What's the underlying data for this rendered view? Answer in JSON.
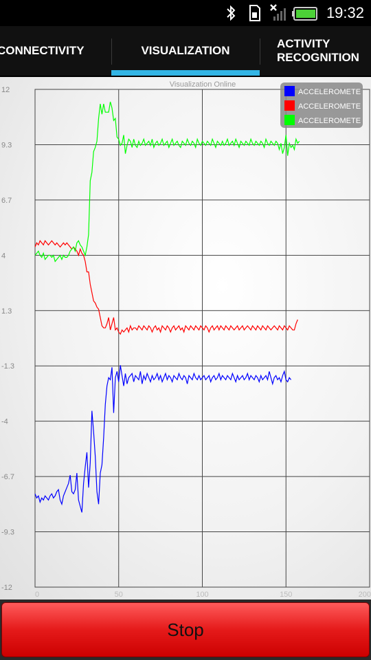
{
  "status_bar": {
    "time": "19:32"
  },
  "tabs": [
    {
      "label": "CONNECTIVITY",
      "active": false
    },
    {
      "label": "VISUALIZATION",
      "active": true
    },
    {
      "label": "ACTIVITY RECOGNITION",
      "active": false
    }
  ],
  "colors": {
    "tab_indicator": "#33b5e5",
    "stop_button": "#e51a1a"
  },
  "chart_data": {
    "type": "line",
    "title": "Visualization Online",
    "xlabel": "",
    "ylabel": "",
    "xlim": [
      0,
      200
    ],
    "ylim": [
      -12,
      12
    ],
    "x_ticks": [
      "0",
      "50",
      "100",
      "150",
      "200"
    ],
    "y_ticks": [
      "12",
      "9.3",
      "6.7",
      "4",
      "1.3",
      "-1.3",
      "-4",
      "-6.7",
      "-9.3",
      "-12"
    ],
    "grid": true,
    "legend_position": "top-right",
    "series": [
      {
        "name": "ACCELEROMETER_",
        "color": "#0000ff",
        "values": [
          -7.5,
          -7.7,
          -7.6,
          -7.9,
          -7.7,
          -7.8,
          -7.6,
          -7.7,
          -7.8,
          -7.6,
          -7.5,
          -7.7,
          -7.6,
          -7.4,
          -7.3,
          -7.8,
          -8.0,
          -7.6,
          -7.4,
          -7.2,
          -7.0,
          -6.6,
          -7.4,
          -7.5,
          -7.3,
          -6.5,
          -7.8,
          -8.1,
          -8.4,
          -7.0,
          -6.2,
          -5.5,
          -7.2,
          -6.0,
          -3.5,
          -4.5,
          -5.7,
          -7.4,
          -8.0,
          -6.5,
          -6.1,
          -4.8,
          -3.2,
          -2.3,
          -1.9,
          -2.0,
          -1.4,
          -3.6,
          -1.9,
          -1.6,
          -2.1,
          -1.3,
          -1.8,
          -2.3,
          -1.7,
          -2.2,
          -1.9,
          -1.8,
          -1.7,
          -2.1,
          -1.8,
          -1.9,
          -2.0,
          -1.6,
          -2.2,
          -1.8,
          -2.0,
          -1.7,
          -1.9,
          -2.1,
          -1.8,
          -2.0,
          -1.9,
          -1.7,
          -2.0,
          -1.8,
          -2.1,
          -1.9,
          -1.7,
          -2.0,
          -1.8,
          -1.9,
          -2.1,
          -1.8,
          -1.9,
          -2.0,
          -1.7,
          -1.9,
          -2.0,
          -1.8,
          -1.9,
          -2.2,
          -1.8,
          -1.9,
          -2.0,
          -1.7,
          -1.9,
          -2.0,
          -1.8,
          -2.0,
          -1.9,
          -1.8,
          -2.0,
          -1.9,
          -1.8,
          -2.1,
          -1.9,
          -1.8,
          -2.0,
          -1.9,
          -1.7,
          -2.0,
          -1.8,
          -1.9,
          -2.0,
          -1.8,
          -1.9,
          -2.0,
          -1.7,
          -1.9,
          -2.1,
          -1.8,
          -2.0,
          -1.9,
          -1.8,
          -2.0,
          -1.9,
          -1.7,
          -2.0,
          -1.8,
          -1.9,
          -2.0,
          -1.8,
          -1.9,
          -2.1,
          -1.8,
          -2.0,
          -1.9,
          -1.8,
          -2.0,
          -1.6,
          -1.9,
          -2.2,
          -1.9,
          -1.8,
          -2.0,
          -1.9,
          -2.1,
          -1.8,
          -1.6,
          -2.0,
          -2.1,
          -1.9,
          -2.0
        ]
      },
      {
        "name": "ACCELEROMETER_",
        "color": "#ff0000",
        "values": [
          4.4,
          4.6,
          4.5,
          4.7,
          4.6,
          4.5,
          4.7,
          4.6,
          4.5,
          4.6,
          4.7,
          4.6,
          4.5,
          4.6,
          4.5,
          4.4,
          4.5,
          4.6,
          4.5,
          4.6,
          4.5,
          4.4,
          4.3,
          4.4,
          4.3,
          4.2,
          4.0,
          4.3,
          4.1,
          4.0,
          3.7,
          3.2,
          3.2,
          2.6,
          2.2,
          1.8,
          1.7,
          1.5,
          1.4,
          1.0,
          0.6,
          0.5,
          0.5,
          0.7,
          1.0,
          0.4,
          0.7,
          1.0,
          0.4,
          0.5,
          0.3,
          0.2,
          0.4,
          0.3,
          0.4,
          0.5,
          0.3,
          0.6,
          0.4,
          0.5,
          0.5,
          0.4,
          0.6,
          0.5,
          0.4,
          0.6,
          0.5,
          0.4,
          0.6,
          0.5,
          0.3,
          0.5,
          0.6,
          0.4,
          0.5,
          0.3,
          0.6,
          0.5,
          0.4,
          0.6,
          0.5,
          0.3,
          0.5,
          0.6,
          0.4,
          0.5,
          0.6,
          0.4,
          0.5,
          0.3,
          0.6,
          0.5,
          0.4,
          0.6,
          0.5,
          0.4,
          0.6,
          0.5,
          0.4,
          0.6,
          0.5,
          0.4,
          0.6,
          0.5,
          0.3,
          0.5,
          0.6,
          0.4,
          0.5,
          0.6,
          0.4,
          0.6,
          0.5,
          0.4,
          0.6,
          0.5,
          0.4,
          0.6,
          0.5,
          0.4,
          0.5,
          0.6,
          0.4,
          0.5,
          0.6,
          0.4,
          0.5,
          0.6,
          0.5,
          0.4,
          0.6,
          0.5,
          0.4,
          0.6,
          0.5,
          0.4,
          0.6,
          0.5,
          0.4,
          0.6,
          0.5,
          0.4,
          0.5,
          0.6,
          0.5,
          0.4,
          0.6,
          0.5,
          0.4,
          0.6,
          0.5,
          0.4,
          0.6,
          0.5,
          0.4,
          0.4,
          0.7,
          0.9
        ]
      },
      {
        "name": "ACCELEROMETER_",
        "color": "#00ff00",
        "values": [
          4.0,
          4.1,
          4.2,
          4.0,
          3.9,
          4.1,
          3.8,
          3.9,
          4.0,
          4.0,
          3.9,
          4.0,
          3.7,
          3.8,
          3.9,
          4.0,
          3.8,
          4.0,
          3.9,
          3.9,
          4.0,
          4.2,
          4.3,
          4.4,
          4.2,
          4.6,
          4.7,
          4.5,
          4.4,
          4.2,
          4.0,
          4.4,
          5.0,
          7.6,
          8.0,
          9.0,
          9.2,
          9.5,
          10.6,
          11.3,
          10.8,
          11.3,
          10.9,
          10.9,
          10.9,
          11.4,
          11.1,
          10.5,
          10.6,
          9.7,
          9.6,
          9.3,
          9.4,
          9.8,
          8.9,
          9.3,
          9.6,
          9.5,
          9.2,
          9.6,
          9.3,
          9.2,
          9.5,
          9.3,
          9.4,
          9.6,
          9.3,
          9.4,
          9.5,
          9.3,
          9.6,
          9.2,
          9.4,
          9.5,
          9.3,
          9.4,
          9.6,
          9.3,
          9.4,
          9.5,
          9.2,
          9.4,
          9.6,
          9.3,
          9.4,
          9.5,
          9.3,
          9.2,
          9.5,
          9.4,
          9.3,
          9.6,
          9.4,
          9.3,
          9.5,
          9.4,
          9.2,
          9.6,
          9.4,
          9.3,
          9.5,
          9.4,
          9.3,
          9.5,
          9.4,
          9.3,
          9.6,
          9.4,
          9.2,
          9.5,
          9.4,
          9.3,
          9.5,
          9.3,
          9.4,
          9.6,
          9.3,
          9.4,
          9.5,
          9.3,
          9.6,
          9.4,
          9.2,
          9.5,
          9.4,
          9.3,
          9.5,
          9.4,
          9.3,
          9.6,
          9.4,
          9.3,
          9.5,
          9.4,
          9.3,
          9.5,
          9.4,
          9.2,
          9.6,
          9.4,
          9.3,
          9.5,
          9.4,
          9.3,
          9.5,
          9.4,
          9.1,
          9.4,
          8.9,
          9.2,
          9.8,
          8.8,
          9.4,
          9.2,
          9.3,
          9.1,
          9.6,
          9.4,
          9.5
        ]
      }
    ]
  },
  "stop_button": {
    "label": "Stop"
  }
}
